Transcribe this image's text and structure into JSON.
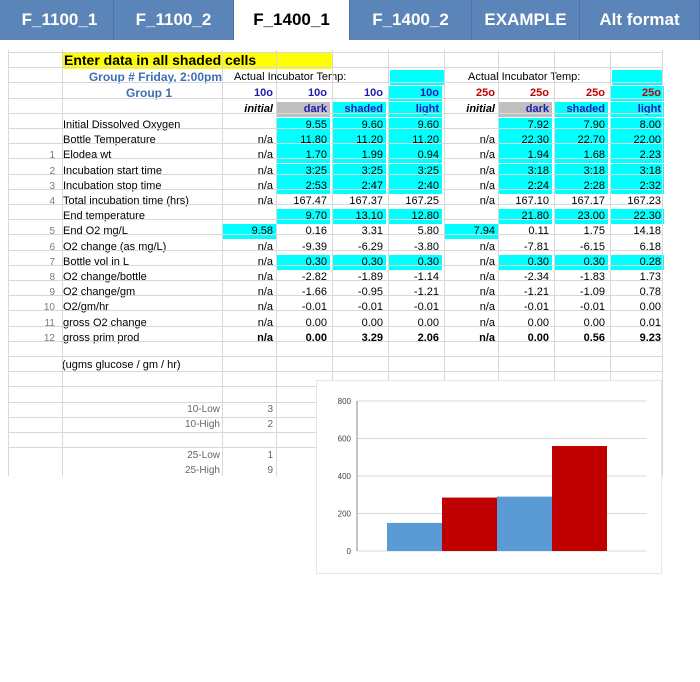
{
  "tabs": [
    "F_1100_1",
    "F_1100_2",
    "F_1400_1",
    "F_1400_2",
    "EXAMPLE",
    "Alt format"
  ],
  "active_tab": 2,
  "header": {
    "instruction": "Enter data in all shaded cells",
    "group_line1": "Group # Friday, 2:00pm",
    "group_line2": "Group 1",
    "temp_label_a": "Actual Incubator Temp:",
    "temp_label_b": "Actual Incubator Temp:",
    "cols_a": [
      "10o",
      "10o",
      "10o",
      "10o"
    ],
    "cols_b": [
      "25o",
      "25o",
      "25o",
      "25o"
    ],
    "sub_a": [
      "initial",
      "dark",
      "shaded",
      "light"
    ],
    "sub_b": [
      "initial",
      "dark",
      "shaded",
      "light"
    ]
  },
  "rows": [
    {
      "num": "",
      "label": "Initial Dissolved Oxygen",
      "a": [
        "",
        "9.55",
        "9.60",
        "9.60"
      ],
      "b": [
        "",
        "7.92",
        "7.90",
        "8.00"
      ]
    },
    {
      "num": "",
      "label": "Bottle Temperature",
      "a": [
        "n/a",
        "11.80",
        "11.20",
        "11.20"
      ],
      "b": [
        "n/a",
        "22.30",
        "22.70",
        "22.00"
      ]
    },
    {
      "num": "1",
      "label": "Elodea wt",
      "a": [
        "n/a",
        "1.70",
        "1.99",
        "0.94"
      ],
      "b": [
        "n/a",
        "1.94",
        "1.68",
        "2.23"
      ]
    },
    {
      "num": "2",
      "label": "Incubation start time",
      "a": [
        "n/a",
        "3:25",
        "3:25",
        "3:25"
      ],
      "b": [
        "n/a",
        "3:18",
        "3:18",
        "3:18"
      ]
    },
    {
      "num": "3",
      "label": "Incubation stop time",
      "a": [
        "n/a",
        "2:53",
        "2:47",
        "2:40"
      ],
      "b": [
        "n/a",
        "2:24",
        "2:28",
        "2:32"
      ]
    },
    {
      "num": "4",
      "label": "Total incubation time (hrs)",
      "a": [
        "n/a",
        "167.47",
        "167.37",
        "167.25"
      ],
      "b": [
        "n/a",
        "167.10",
        "167.17",
        "167.23"
      ]
    },
    {
      "num": "",
      "label": "End temperature",
      "a": [
        "",
        "9.70",
        "13.10",
        "12.80"
      ],
      "b": [
        "",
        "21.80",
        "23.00",
        "22.30"
      ]
    },
    {
      "num": "5",
      "label": "End O2 mg/L",
      "a": [
        "9.58",
        "0.16",
        "3.31",
        "5.80"
      ],
      "b": [
        "7.94",
        "0.11",
        "1.75",
        "14.18"
      ]
    },
    {
      "num": "6",
      "label": "O2  change (as mg/L)",
      "a": [
        "n/a",
        "-9.39",
        "-6.29",
        "-3.80"
      ],
      "b": [
        "n/a",
        "-7.81",
        "-6.15",
        "6.18"
      ]
    },
    {
      "num": "7",
      "label": "Bottle vol in L",
      "a": [
        "n/a",
        "0.30",
        "0.30",
        "0.30"
      ],
      "b": [
        "n/a",
        "0.30",
        "0.30",
        "0.28"
      ]
    },
    {
      "num": "8",
      "label": "O2 change/bottle",
      "a": [
        "n/a",
        "-2.82",
        "-1.89",
        "-1.14"
      ],
      "b": [
        "n/a",
        "-2.34",
        "-1.83",
        "1.73"
      ]
    },
    {
      "num": "9",
      "label": "O2 change/gm",
      "a": [
        "n/a",
        "-1.66",
        "-0.95",
        "-1.21"
      ],
      "b": [
        "n/a",
        "-1.21",
        "-1.09",
        "0.78"
      ]
    },
    {
      "num": "10",
      "label": "O2/gm/hr",
      "a": [
        "n/a",
        "-0.01",
        "-0.01",
        "-0.01"
      ],
      "b": [
        "n/a",
        "-0.01",
        "-0.01",
        "0.00"
      ]
    },
    {
      "num": "11",
      "label": "gross O2 change",
      "a": [
        "n/a",
        "0.00",
        "0.00",
        "0.00"
      ],
      "b": [
        "n/a",
        "0.00",
        "0.00",
        "0.01"
      ]
    },
    {
      "num": "12",
      "label": "gross prim prod",
      "a": [
        "n/a",
        "0.00",
        "3.29",
        "2.06"
      ],
      "b": [
        "n/a",
        "0.00",
        "0.56",
        "9.23"
      ]
    }
  ],
  "footnote": "(ugms glucose / gm / hr)",
  "ranges": [
    {
      "label": "10-Low",
      "value": "3"
    },
    {
      "label": "10-High",
      "value": "2"
    },
    {
      "label": "25-Low",
      "value": "1"
    },
    {
      "label": "25-High",
      "value": "9"
    }
  ],
  "chart_data": {
    "type": "bar",
    "ylim": [
      0,
      800
    ],
    "yticks": [
      "0",
      "200",
      "400",
      "600",
      "800"
    ],
    "bar_values": [
      150,
      285,
      290,
      560
    ],
    "bar_colors": [
      "#5b9bd5",
      "#c00000",
      "#5b9bd5",
      "#c00000"
    ]
  }
}
